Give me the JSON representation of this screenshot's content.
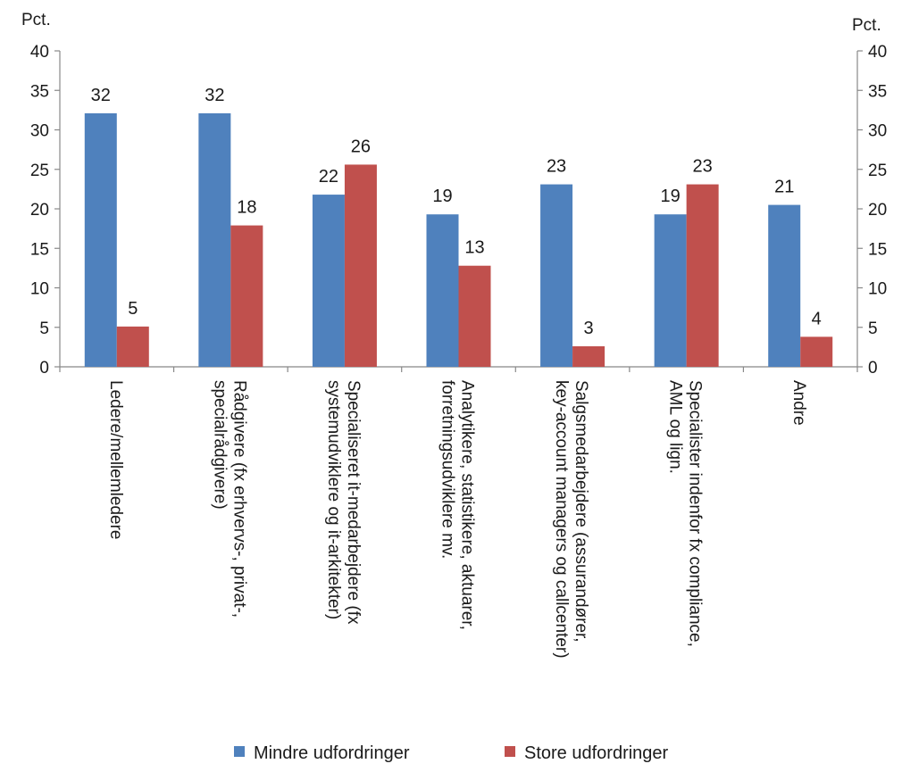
{
  "chart_data": {
    "type": "bar",
    "y_unit_left": "Pct.",
    "y_unit_right": "Pct.",
    "ylim": [
      0,
      40
    ],
    "yticks": [
      0,
      5,
      10,
      15,
      20,
      25,
      30,
      35,
      40
    ],
    "ytick_labels": [
      "0",
      "5",
      "10",
      "15",
      "20",
      "25",
      "30",
      "35",
      "40"
    ],
    "grid": false,
    "legend_position": "bottom",
    "categories": [
      [
        "Ledere/mellemledere"
      ],
      [
        "Rådgivere (fx erhvervs-, privat-,",
        "specialrådgivere)"
      ],
      [
        "Specialiseret it-medarbejdere (fx",
        "systemudviklere og it-arkitekter)"
      ],
      [
        "Analytikere, statistikere, aktuarer,",
        "forretningsudviklere mv."
      ],
      [
        "Salgsmedarbejdere (assurandører,",
        "key-account managers og callcenter)"
      ],
      [
        "Specialister indenfor fx compliance,",
        "AML og lign."
      ],
      [
        "Andre"
      ]
    ],
    "series": [
      {
        "name": "Mindre udfordringer",
        "color": "#4f81bd",
        "values": [
          32.1,
          32.1,
          21.8,
          19.3,
          23.1,
          19.3,
          20.5
        ],
        "labels": [
          "32",
          "32",
          "22",
          "19",
          "23",
          "19",
          "21"
        ]
      },
      {
        "name": "Store udfordringer",
        "color": "#c0504d",
        "values": [
          5.1,
          17.9,
          25.6,
          12.8,
          2.6,
          23.1,
          3.8
        ],
        "labels": [
          "5",
          "18",
          "26",
          "13",
          "3",
          "23",
          "4"
        ]
      }
    ]
  }
}
